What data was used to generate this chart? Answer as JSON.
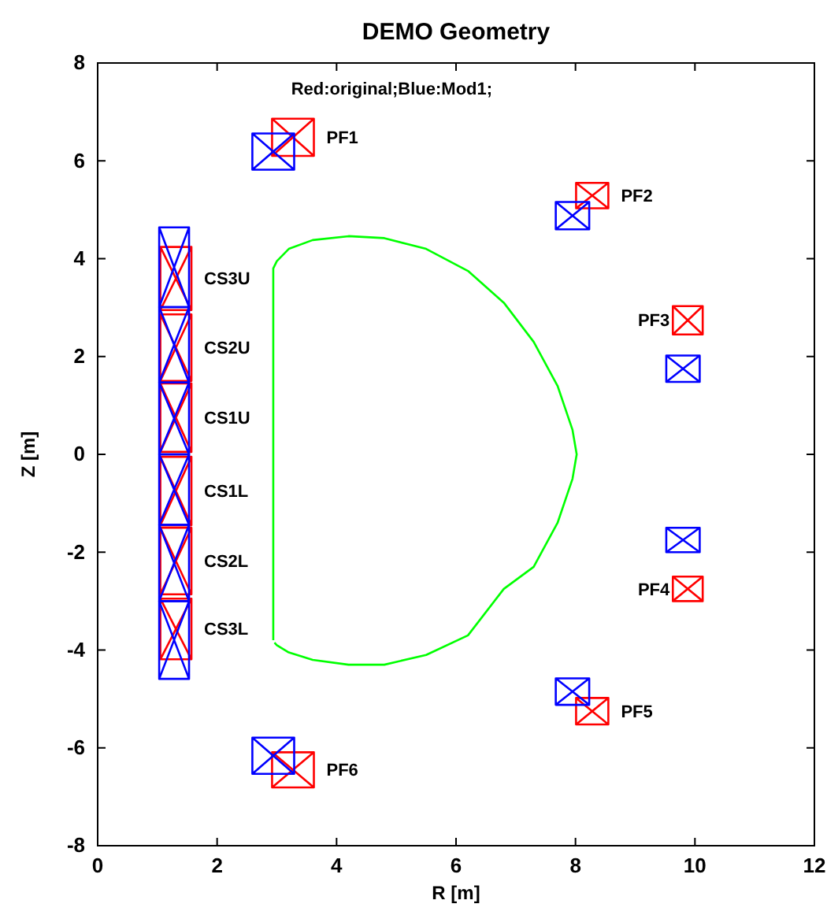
{
  "chart_data": {
    "type": "line",
    "title": "DEMO Geometry",
    "xlabel": "R [m]",
    "ylabel": "Z [m]",
    "xlim": [
      0,
      12
    ],
    "xticks": [
      0,
      2,
      4,
      6,
      8,
      10,
      12
    ],
    "ylim": [
      -8,
      8
    ],
    "yticks": [
      -8,
      -6,
      -4,
      -2,
      0,
      2,
      4,
      6,
      8
    ],
    "grid": false,
    "legend": false,
    "series": [
      {
        "name": "PF1",
        "color": "#ff0000",
        "x": [
          2.92,
          3.62,
          3.62,
          2.92,
          2.92,
          3.62,
          2.92,
          3.62
        ],
        "values": [
          6.1,
          6.1,
          6.86,
          6.86,
          6.1,
          6.86,
          6.86,
          6.1
        ]
      },
      {
        "name": "PF2",
        "color": "#ff0000",
        "x": [
          8.01,
          8.55,
          8.55,
          8.01,
          8.01,
          8.55,
          8.01,
          8.55
        ],
        "values": [
          5.03,
          5.03,
          5.55,
          5.55,
          5.03,
          5.55,
          5.55,
          5.03
        ]
      },
      {
        "name": "PF3",
        "color": "#ff0000",
        "x": [
          9.63,
          10.13,
          10.13,
          9.63,
          9.63,
          10.13,
          9.63,
          10.13
        ],
        "values": [
          2.45,
          2.45,
          3.03,
          3.03,
          2.45,
          3.03,
          3.03,
          2.45
        ]
      },
      {
        "name": "PF4",
        "color": "#ff0000",
        "x": [
          9.63,
          10.13,
          10.13,
          9.63,
          9.63,
          10.13,
          9.63,
          10.13
        ],
        "values": [
          -3.0,
          -3.0,
          -2.5,
          -2.5,
          -3.0,
          -2.5,
          -2.5,
          -3.0
        ]
      },
      {
        "name": "PF5",
        "color": "#ff0000",
        "x": [
          8.01,
          8.55,
          8.55,
          8.01,
          8.01,
          8.55,
          8.01,
          8.55
        ],
        "values": [
          -5.52,
          -5.52,
          -4.98,
          -4.98,
          -5.52,
          -4.98,
          -4.98,
          -5.52
        ]
      },
      {
        "name": "PF6",
        "color": "#ff0000",
        "x": [
          2.92,
          3.62,
          3.62,
          2.92,
          2.92,
          3.62,
          2.92,
          3.62
        ],
        "values": [
          -6.81,
          -6.81,
          -6.09,
          -6.09,
          -6.81,
          -6.09,
          -6.09,
          -6.81
        ]
      },
      {
        "name": "CS3U",
        "color": "#ff0000",
        "x": [
          1.05,
          1.57,
          1.57,
          1.05,
          1.05,
          1.57,
          1.05,
          1.57
        ],
        "values": [
          2.95,
          2.95,
          4.24,
          4.24,
          2.95,
          4.24,
          4.24,
          2.95
        ]
      },
      {
        "name": "CS2U",
        "color": "#ff0000",
        "x": [
          1.05,
          1.57,
          1.57,
          1.05,
          1.05,
          1.57,
          1.05,
          1.57
        ],
        "values": [
          1.5,
          1.5,
          2.86,
          2.86,
          1.5,
          2.86,
          2.86,
          1.5
        ]
      },
      {
        "name": "CS1U",
        "color": "#ff0000",
        "x": [
          1.05,
          1.57,
          1.57,
          1.05,
          1.05,
          1.57,
          1.05,
          1.57
        ],
        "values": [
          0.05,
          0.05,
          1.45,
          1.45,
          0.05,
          1.45,
          1.45,
          0.05
        ]
      },
      {
        "name": "CS1L",
        "color": "#ff0000",
        "x": [
          1.05,
          1.57,
          1.57,
          1.05,
          1.05,
          1.57,
          1.05,
          1.57
        ],
        "values": [
          -1.45,
          -1.45,
          -0.05,
          -0.05,
          -1.45,
          -0.05,
          -0.05,
          -1.45
        ]
      },
      {
        "name": "CS2L",
        "color": "#ff0000",
        "x": [
          1.05,
          1.57,
          1.57,
          1.05,
          1.05,
          1.57,
          1.05,
          1.57
        ],
        "values": [
          -2.86,
          -2.86,
          -1.5,
          -1.5,
          -2.86,
          -1.5,
          -1.5,
          -2.86
        ]
      },
      {
        "name": "CS3L",
        "color": "#ff0000",
        "x": [
          1.05,
          1.57,
          1.57,
          1.05,
          1.05,
          1.57,
          1.05,
          1.57
        ],
        "values": [
          -4.19,
          -4.19,
          -2.95,
          -2.95,
          -4.19,
          -2.95,
          -2.95,
          -4.19
        ]
      },
      {
        "color": "#0000ff",
        "x": [
          2.59,
          3.29,
          3.29,
          2.59,
          2.59,
          3.29,
          2.59,
          3.29
        ],
        "values": [
          5.82,
          5.82,
          6.56,
          6.56,
          5.82,
          6.56,
          6.56,
          5.82
        ]
      },
      {
        "color": "#0000ff",
        "x": [
          7.67,
          8.23,
          8.23,
          7.67,
          7.67,
          8.23,
          7.67,
          8.23
        ],
        "values": [
          4.6,
          4.6,
          5.16,
          5.16,
          4.6,
          5.16,
          5.16,
          4.6
        ]
      },
      {
        "color": "#0000ff",
        "x": [
          9.52,
          10.08,
          10.08,
          9.52,
          9.52,
          10.08,
          9.52,
          10.08
        ],
        "values": [
          1.48,
          1.48,
          2.02,
          2.02,
          1.48,
          2.02,
          2.02,
          1.48
        ]
      },
      {
        "color": "#0000ff",
        "x": [
          9.52,
          10.08,
          10.08,
          9.52,
          9.52,
          10.08,
          9.52,
          10.08
        ],
        "values": [
          -2.0,
          -2.0,
          -1.5,
          -1.5,
          -2.0,
          -1.5,
          -1.5,
          -2.0
        ]
      },
      {
        "color": "#0000ff",
        "x": [
          7.67,
          8.23,
          8.23,
          7.67,
          7.67,
          8.23,
          7.67,
          8.23
        ],
        "values": [
          -5.12,
          -5.12,
          -4.58,
          -4.58,
          -5.12,
          -4.58,
          -4.58,
          -5.12
        ]
      },
      {
        "color": "#0000ff",
        "x": [
          2.59,
          3.29,
          3.29,
          2.59,
          2.59,
          3.29,
          2.59,
          3.29
        ],
        "values": [
          -6.53,
          -6.53,
          -5.79,
          -5.79,
          -6.53,
          -5.79,
          -5.79,
          -6.53
        ]
      },
      {
        "color": "#0000ff",
        "x": [
          1.03,
          1.53,
          1.53,
          1.03,
          1.03,
          1.53,
          1.03,
          1.53
        ],
        "values": [
          3.01,
          3.01,
          4.64,
          4.64,
          3.01,
          4.64,
          4.64,
          3.01
        ]
      },
      {
        "color": "#0000ff",
        "x": [
          1.03,
          1.53,
          1.53,
          1.03,
          1.03,
          1.53,
          1.03,
          1.53
        ],
        "values": [
          1.47,
          1.47,
          3.01,
          3.01,
          1.47,
          3.01,
          3.01,
          1.47
        ]
      },
      {
        "color": "#0000ff",
        "x": [
          1.03,
          1.53,
          1.53,
          1.03,
          1.03,
          1.53,
          1.03,
          1.53
        ],
        "values": [
          0,
          0,
          1.47,
          1.47,
          0,
          1.47,
          1.47,
          0
        ]
      },
      {
        "color": "#0000ff",
        "x": [
          1.03,
          1.53,
          1.53,
          1.03,
          1.03,
          1.53,
          1.03,
          1.53
        ],
        "values": [
          -1.44,
          -1.44,
          0,
          0,
          -1.44,
          0,
          0,
          -1.44
        ]
      },
      {
        "color": "#0000ff",
        "x": [
          1.03,
          1.53,
          1.53,
          1.03,
          1.03,
          1.53,
          1.03,
          1.53
        ],
        "values": [
          -3.0,
          -3.0,
          -1.44,
          -1.44,
          -3.0,
          -1.44,
          -1.44,
          -3.0
        ]
      },
      {
        "color": "#0000ff",
        "x": [
          1.03,
          1.53,
          1.53,
          1.03,
          1.03,
          1.53,
          1.03,
          1.53
        ],
        "values": [
          -4.59,
          -4.59,
          -3.0,
          -3.0,
          -4.59,
          -3.0,
          -3.0,
          -4.59
        ]
      },
      {
        "color": "#00ff00",
        "x": [
          2.94,
          2.94,
          3.0,
          3.2,
          3.6,
          4.2,
          4.8,
          5.5,
          6.2,
          6.8,
          7.3,
          7.7,
          7.95,
          8.02,
          7.95,
          7.7,
          7.3,
          6.8,
          6.2,
          5.5,
          4.8,
          4.2,
          3.6,
          3.2,
          3.0,
          2.96
        ],
        "values": [
          -3.8,
          3.8,
          3.95,
          4.2,
          4.38,
          4.46,
          4.42,
          4.2,
          3.75,
          3.1,
          2.3,
          1.4,
          0.5,
          0,
          -0.5,
          -1.4,
          -2.3,
          -2.75,
          -3.7,
          -4.1,
          -4.3,
          -4.3,
          -4.2,
          -4.05,
          -3.9,
          -3.85
        ]
      }
    ],
    "annotations": [
      "Red:original;Blue:Mod1;"
    ]
  }
}
